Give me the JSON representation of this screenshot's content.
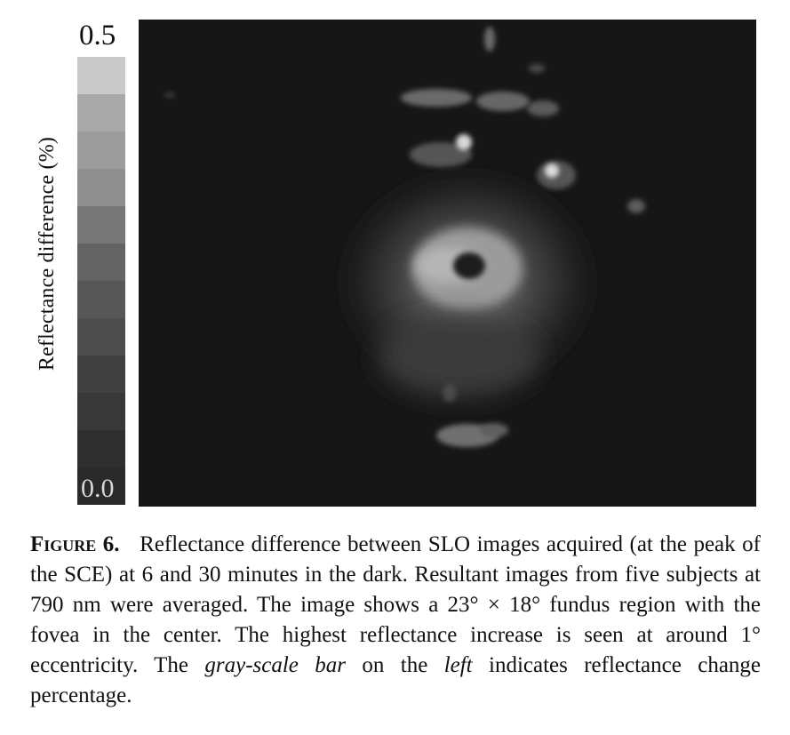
{
  "colorbar": {
    "label": "Reflectance difference (%)",
    "max_label": "0.5",
    "min_label": "0.0",
    "range": [
      0.0,
      0.5
    ],
    "levels": [
      "#c9c9c9",
      "#a9a9a9",
      "#9c9c9c",
      "#8f8f8f",
      "#777777",
      "#636363",
      "#575757",
      "#4d4d4d",
      "#414141",
      "#383838",
      "#2f2f2f",
      "#2a2a2a"
    ]
  },
  "image": {
    "background": "#161616"
  },
  "caption": {
    "label": "Figure 6.",
    "text_1": "Reflectance difference between SLO images acquired (at the peak of the SCE) at 6 and 30 minutes in the dark. Resultant images from five subjects at 790 nm were averaged. The image shows a 23° × 18° fundus region with the fovea in the center. The highest reflectance increase is seen at around 1° eccentricity. The ",
    "italic_1": "gray-scale bar",
    "text_2": " on the ",
    "italic_2": "left",
    "text_3": " indicates reflectance change percentage."
  }
}
